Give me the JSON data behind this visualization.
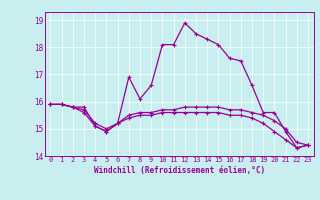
{
  "xlabel": "Windchill (Refroidissement éolien,°C)",
  "background_color": "#c8eef0",
  "line_color": "#990099",
  "xlim": [
    -0.5,
    23.5
  ],
  "ylim": [
    14.0,
    19.3
  ],
  "yticks": [
    14,
    15,
    16,
    17,
    18,
    19
  ],
  "xticks": [
    0,
    1,
    2,
    3,
    4,
    5,
    6,
    7,
    8,
    9,
    10,
    11,
    12,
    13,
    14,
    15,
    16,
    17,
    18,
    19,
    20,
    21,
    22,
    23
  ],
  "series1_x": [
    0,
    1,
    2,
    3,
    4,
    5,
    6,
    7,
    8,
    9,
    10,
    11,
    12,
    13,
    14,
    15,
    16,
    17,
    18,
    19,
    20,
    21,
    22,
    23
  ],
  "series1_y": [
    15.9,
    15.9,
    15.8,
    15.8,
    15.1,
    14.9,
    15.2,
    16.9,
    16.1,
    16.6,
    18.1,
    18.1,
    18.9,
    18.5,
    18.3,
    18.1,
    17.6,
    17.5,
    16.6,
    15.6,
    15.6,
    14.9,
    14.3,
    14.4
  ],
  "series2_x": [
    0,
    1,
    2,
    3,
    4,
    5,
    6,
    7,
    8,
    9,
    10,
    11,
    12,
    13,
    14,
    15,
    16,
    17,
    18,
    19,
    20,
    21,
    22,
    23
  ],
  "series2_y": [
    15.9,
    15.9,
    15.8,
    15.7,
    15.2,
    15.0,
    15.2,
    15.5,
    15.6,
    15.6,
    15.7,
    15.7,
    15.8,
    15.8,
    15.8,
    15.8,
    15.7,
    15.7,
    15.6,
    15.5,
    15.3,
    15.0,
    14.5,
    14.4
  ],
  "series3_x": [
    0,
    1,
    2,
    3,
    4,
    5,
    6,
    7,
    8,
    9,
    10,
    11,
    12,
    13,
    14,
    15,
    16,
    17,
    18,
    19,
    20,
    21,
    22,
    23
  ],
  "series3_y": [
    15.9,
    15.9,
    15.8,
    15.6,
    15.1,
    14.9,
    15.2,
    15.4,
    15.5,
    15.5,
    15.6,
    15.6,
    15.6,
    15.6,
    15.6,
    15.6,
    15.5,
    15.5,
    15.4,
    15.2,
    14.9,
    14.6,
    14.3,
    14.4
  ],
  "tick_fontsize": 5.0,
  "xlabel_fontsize": 5.5
}
